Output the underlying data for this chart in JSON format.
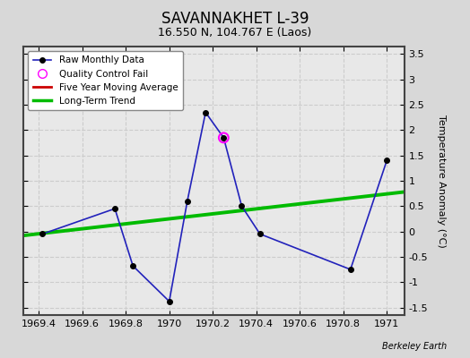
{
  "title": "SAVANNAKHET L-39",
  "subtitle": "16.550 N, 104.767 E (Laos)",
  "ylabel": "Temperature Anomaly (°C)",
  "watermark": "Berkeley Earth",
  "xlim": [
    1969.33,
    1971.08
  ],
  "ylim": [
    -1.65,
    3.65
  ],
  "yticks": [
    -1.5,
    -1.0,
    -0.5,
    0.0,
    0.5,
    1.0,
    1.5,
    2.0,
    2.5,
    3.0,
    3.5
  ],
  "ytick_labels": [
    "-1.5",
    "-1",
    "-0.5",
    "0",
    "0.5",
    "1",
    "1.5",
    "2",
    "2.5",
    "3",
    "3.5"
  ],
  "xticks": [
    1969.4,
    1969.6,
    1969.8,
    1970.0,
    1970.2,
    1970.4,
    1970.6,
    1970.8,
    1971.0
  ],
  "xtick_labels": [
    "1969.4",
    "1969.6",
    "1969.8",
    "1970",
    "1970.2",
    "1970.4",
    "1970.6",
    "1970.8",
    "1971"
  ],
  "raw_x": [
    1969.417,
    1969.75,
    1969.833,
    1970.0,
    1970.083,
    1970.167,
    1970.25,
    1970.333,
    1970.417,
    1970.833,
    1971.0
  ],
  "raw_y": [
    -0.05,
    0.45,
    -0.68,
    -1.38,
    0.6,
    2.35,
    1.85,
    0.5,
    -0.05,
    -0.75,
    1.4
  ],
  "qc_fail_x": [
    1970.25
  ],
  "qc_fail_y": [
    1.85
  ],
  "trend_x": [
    1969.33,
    1971.08
  ],
  "trend_y": [
    -0.08,
    0.78
  ],
  "fig_bg_color": "#d8d8d8",
  "plot_bg_color": "#e8e8e8",
  "raw_line_color": "#2222bb",
  "raw_marker_color": "#000000",
  "qc_color": "#ff00ff",
  "trend_color": "#00bb00",
  "moving_avg_color": "#cc0000",
  "grid_color": "#cccccc",
  "spine_color": "#444444",
  "title_fontsize": 12,
  "subtitle_fontsize": 9,
  "tick_fontsize": 8,
  "ylabel_fontsize": 8
}
